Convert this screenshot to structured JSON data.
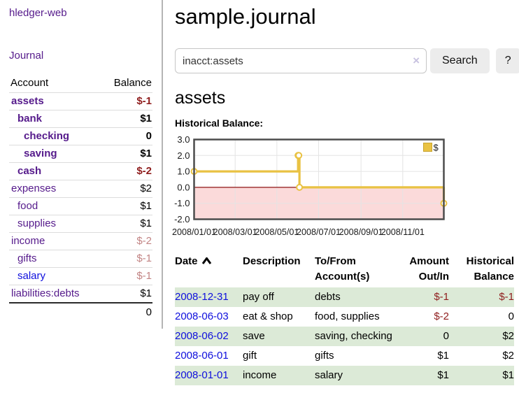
{
  "app": {
    "brand": "hledger-web",
    "nav_journal": "Journal"
  },
  "sidebar": {
    "columns": {
      "account": "Account",
      "balance": "Balance"
    },
    "accounts": [
      {
        "name": "assets",
        "balance": "$-1",
        "level": 1,
        "bold": true,
        "neg": "strong"
      },
      {
        "name": "bank",
        "balance": "$1",
        "level": 2,
        "bold": true
      },
      {
        "name": "checking",
        "balance": "0",
        "level": 3,
        "bold": true
      },
      {
        "name": "saving",
        "balance": "$1",
        "level": 3,
        "bold": true
      },
      {
        "name": "cash",
        "balance": "$-2",
        "level": 2,
        "bold": true,
        "neg": "strong"
      },
      {
        "name": "expenses",
        "balance": "$2",
        "level": 1
      },
      {
        "name": "food",
        "balance": "$1",
        "level": 2
      },
      {
        "name": "supplies",
        "balance": "$1",
        "level": 2
      },
      {
        "name": "income",
        "balance": "$-2",
        "level": 1,
        "neg": "pale"
      },
      {
        "name": "gifts",
        "balance": "$-1",
        "level": 2,
        "neg": "pale"
      },
      {
        "name": "salary",
        "balance": "$-1",
        "level": 2,
        "neg": "pale",
        "unvisited": true
      },
      {
        "name": "liabilities:debts",
        "balance": "$1",
        "level": 1
      }
    ],
    "total": "0"
  },
  "header": {
    "title": "sample.journal"
  },
  "search": {
    "value": "inacct:assets",
    "clear_icon": "×",
    "button": "Search",
    "help_button": "?"
  },
  "account_page": {
    "heading": "assets",
    "chart_label": "Historical Balance:"
  },
  "chart_data": {
    "type": "line",
    "subtype": "step",
    "title": "Historical Balance",
    "series": [
      {
        "name": "$",
        "color": "#e9c243",
        "points": [
          [
            "2008-01-01",
            1
          ],
          [
            "2008-06-01",
            2
          ],
          [
            "2008-06-02",
            2
          ],
          [
            "2008-06-03",
            0
          ],
          [
            "2008-12-31",
            -1
          ]
        ]
      }
    ],
    "x_ticks": [
      "2008/01/01",
      "2008/03/01",
      "2008/05/01",
      "2008/07/01",
      "2008/09/01",
      "2008/11/01"
    ],
    "y_ticks": [
      "3.0",
      "2.0",
      "1.0",
      "0.0",
      "-1.0",
      "-2.0"
    ],
    "xlim": [
      "2008-01-01",
      "2008-12-31"
    ],
    "ylim": [
      -2,
      3
    ],
    "grid": true,
    "legend": {
      "label": "$",
      "position": "top-right"
    },
    "colors": {
      "negative_region": "#fbdada",
      "zero_line": "#8f1414",
      "grid": "#e4e4e4",
      "border": "#4c4c4c",
      "marker_fill": "#ffffff",
      "legend_border": "#c8a42e"
    }
  },
  "transactions": {
    "columns": {
      "date": "Date",
      "description": "Description",
      "tofrom": "To/From Account(s)",
      "amount": "Amount Out/In",
      "balance": "Historical Balance"
    },
    "sort": "ascending",
    "rows": [
      {
        "date": "2008-12-31",
        "description": "pay off",
        "accounts": "debts",
        "amount": "$-1",
        "balance": "$-1",
        "amount_neg": true,
        "balance_neg": true,
        "shaded": true
      },
      {
        "date": "2008-06-03",
        "description": "eat & shop",
        "accounts": "food, supplies",
        "amount": "$-2",
        "balance": "0",
        "amount_neg": true,
        "shaded": false
      },
      {
        "date": "2008-06-02",
        "description": "save",
        "accounts": "saving, checking",
        "amount": "0",
        "balance": "$2",
        "shaded": true
      },
      {
        "date": "2008-06-01",
        "description": "gift",
        "accounts": "gifts",
        "amount": "$1",
        "balance": "$2",
        "shaded": false
      },
      {
        "date": "2008-01-01",
        "description": "income",
        "accounts": "salary",
        "amount": "$1",
        "balance": "$1",
        "shaded": true
      }
    ]
  },
  "colors": {
    "link_visited": "#551a8b",
    "link_unvisited": "#0f0fdd",
    "negative_strong": "#8f1d1d",
    "negative_pale": "#c28484",
    "row_shade_green": "#dcead7",
    "accent_gold": "#e9c243"
  }
}
